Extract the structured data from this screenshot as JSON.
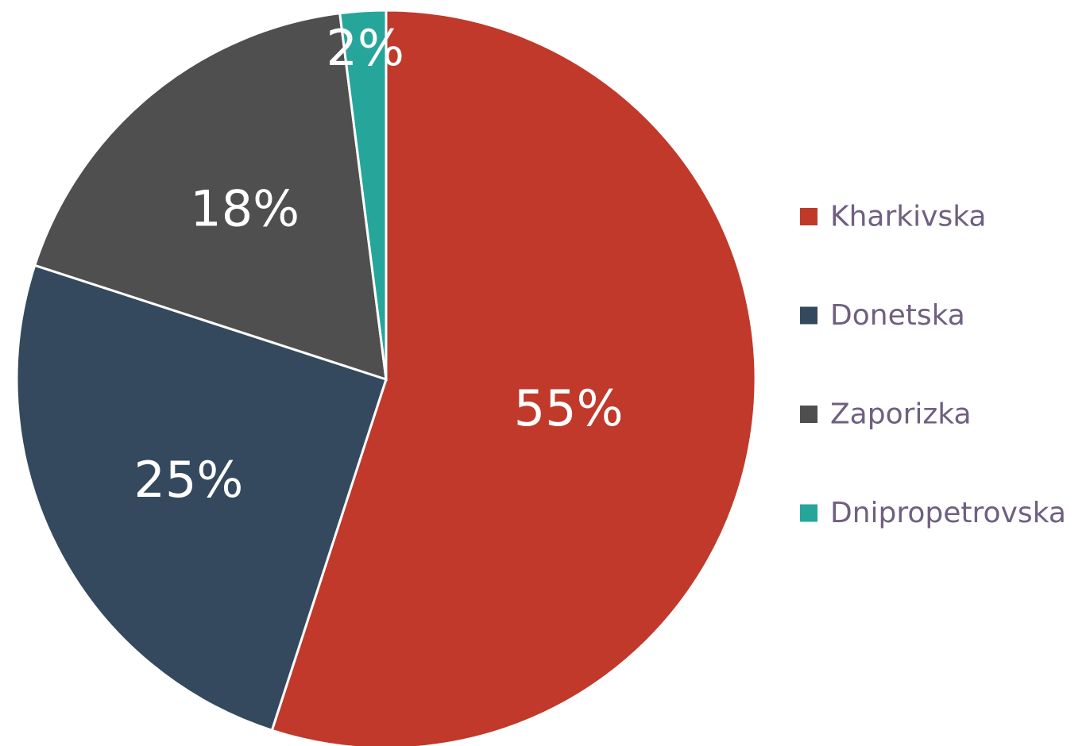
{
  "chart_data": {
    "type": "pie",
    "categories": [
      "Kharkivska",
      "Donetska",
      "Zaporizka",
      "Dnipropetrovska"
    ],
    "values": [
      55,
      25,
      18,
      2
    ],
    "value_labels": [
      "55%",
      "25%",
      "18%",
      "2%"
    ],
    "colors": [
      "#c0392b",
      "#34495e",
      "#4f4f4f",
      "#26a69a"
    ],
    "legend": "right"
  }
}
